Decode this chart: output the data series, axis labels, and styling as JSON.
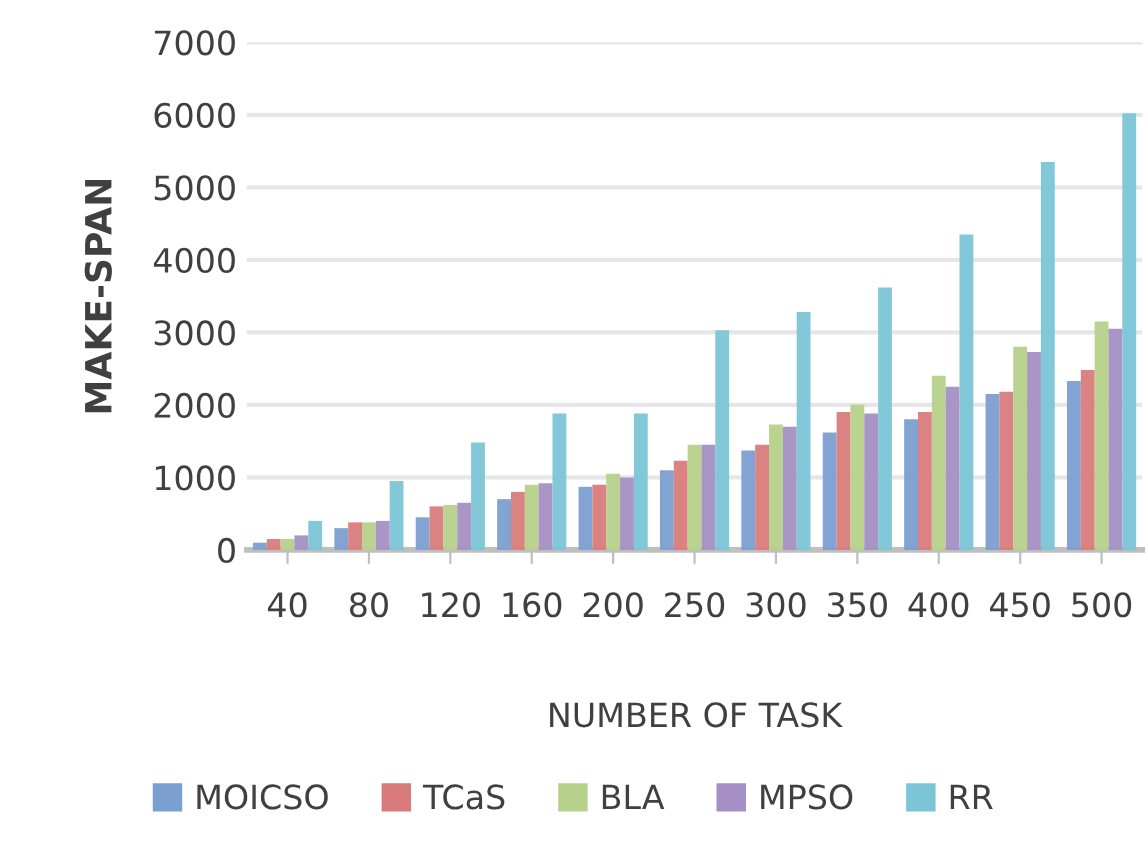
{
  "chart_data": {
    "type": "bar",
    "xlabel": "NUMBER OF TASK",
    "ylabel": "MAKE-SPAN",
    "categories": [
      "40",
      "80",
      "120",
      "160",
      "200",
      "250",
      "300",
      "350",
      "400",
      "450",
      "500"
    ],
    "series": [
      {
        "name": "MOICSO",
        "color": "#7c9fd1",
        "values": [
          100,
          300,
          450,
          700,
          870,
          1100,
          1370,
          1620,
          1800,
          2150,
          2330
        ]
      },
      {
        "name": "TCaS",
        "color": "#d97b7b",
        "values": [
          150,
          380,
          600,
          800,
          900,
          1230,
          1450,
          1900,
          1900,
          2180,
          2480
        ]
      },
      {
        "name": "BLA",
        "color": "#b7d18a",
        "values": [
          150,
          380,
          620,
          900,
          1050,
          1450,
          1730,
          2000,
          2400,
          2800,
          3150
        ]
      },
      {
        "name": "MPSO",
        "color": "#a58fc4",
        "values": [
          200,
          400,
          650,
          920,
          1000,
          1450,
          1700,
          1880,
          2250,
          2730,
          3050
        ]
      },
      {
        "name": "RR",
        "color": "#7cc5d6",
        "values": [
          400,
          950,
          1480,
          1880,
          1880,
          3030,
          3280,
          3620,
          4350,
          5350,
          6020
        ]
      }
    ],
    "ylim": [
      0,
      7000
    ],
    "yticks": [
      0,
      1000,
      2000,
      3000,
      4000,
      5000,
      6000,
      7000
    ],
    "grid": "y",
    "legend": "bottom"
  }
}
